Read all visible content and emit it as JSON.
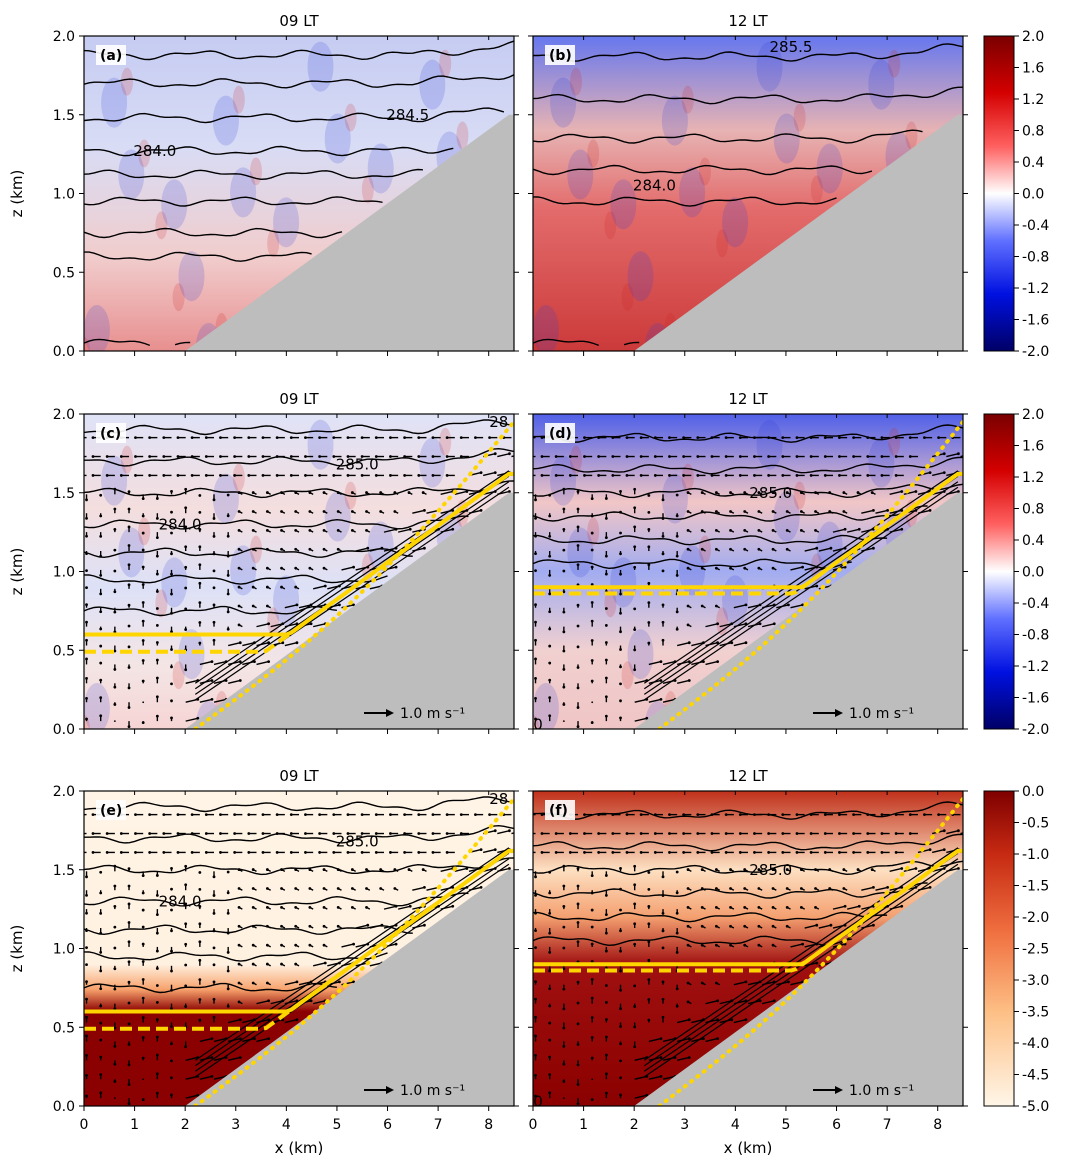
{
  "chart_data": [
    {
      "type": "heatmap",
      "panel_label": "(a)",
      "title": "09 LT",
      "ylabel": "z (km)",
      "xlabel": "",
      "xlim": [
        0,
        8.5
      ],
      "ylim": [
        0,
        2
      ],
      "terrain": {
        "x_start": 2.0,
        "x_end": 8.4,
        "z_top": 1.5
      },
      "contours": [
        0.05,
        0.6,
        0.75,
        0.95,
        1.12,
        1.27,
        1.48,
        1.7,
        1.88
      ],
      "contour_labels": [
        {
          "text": "284.0",
          "x": 1.4,
          "y": 1.27
        },
        {
          "text": "284.5",
          "x": 6.4,
          "y": 1.5
        }
      ],
      "colorbar": {
        "id": "rwb",
        "ticks": [
          "2.0",
          "1.6",
          "1.2",
          "0.8",
          "0.4",
          "0.0",
          "-0.4",
          "-0.8",
          "-1.2",
          "-1.6",
          "-2.0"
        ]
      }
    },
    {
      "type": "heatmap",
      "panel_label": "(b)",
      "title": "12 LT",
      "ylabel": "",
      "xlabel": "",
      "xlim": [
        0,
        8.5
      ],
      "ylim": [
        0,
        2
      ],
      "terrain": {
        "x_start": 2.0,
        "x_end": 8.4,
        "z_top": 1.5
      },
      "contours": [
        0.05,
        0.95,
        1.15,
        1.35,
        1.6,
        1.87
      ],
      "contour_labels": [
        {
          "text": "284.0",
          "x": 2.4,
          "y": 1.05
        },
        {
          "text": "285.5",
          "x": 5.1,
          "y": 1.93
        }
      ],
      "colorbar": {
        "id": "rwb",
        "ticks": [
          "2.0",
          "1.6",
          "1.2",
          "0.8",
          "0.4",
          "0.0",
          "-0.4",
          "-0.8",
          "-1.2",
          "-1.6",
          "-2.0"
        ]
      }
    },
    {
      "type": "heatmap",
      "panel_label": "(c)",
      "title": "09 LT",
      "ylabel": "z (km)",
      "xlabel": "",
      "xlim": [
        0,
        8.5
      ],
      "ylim": [
        0,
        2
      ],
      "terrain": {
        "x_start": 2.0,
        "x_end": 8.4,
        "z_top": 1.5
      },
      "contours": [
        0.75,
        0.95,
        1.12,
        1.3,
        1.5,
        1.7,
        1.9
      ],
      "contour_labels": [
        {
          "text": "284.0",
          "x": 1.9,
          "y": 1.3
        },
        {
          "text": "285.0",
          "x": 5.4,
          "y": 1.68
        },
        {
          "text": "28",
          "x": 8.2,
          "y": 1.95
        }
      ],
      "yellow_solid": {
        "flat_z": 0.6,
        "x_bend": 2.6
      },
      "yellow_dashed": {
        "flat_z": 0.49,
        "x_bend": 2.4
      },
      "yellow_dotted_start_x": 2.2,
      "vector_scale_label": "1.0 m s⁻¹",
      "colorbar": {
        "id": "rwb",
        "ticks": [
          "2.0",
          "1.6",
          "1.2",
          "0.8",
          "0.4",
          "0.0",
          "-0.4",
          "-0.8",
          "-1.2",
          "-1.6",
          "-2.0"
        ]
      }
    },
    {
      "type": "heatmap",
      "panel_label": "(d)",
      "title": "12 LT",
      "ylabel": "",
      "xlabel": "",
      "xlim": [
        0,
        8.5
      ],
      "ylim": [
        0,
        2
      ],
      "terrain": {
        "x_start": 2.0,
        "x_end": 8.4,
        "z_top": 1.5
      },
      "contours": [
        1.05,
        1.2,
        1.35,
        1.5,
        1.65,
        1.85
      ],
      "contour_labels": [
        {
          "text": "285.0",
          "x": 4.7,
          "y": 1.5
        },
        {
          "text": "0",
          "x": 0.1,
          "y": 0.03
        }
      ],
      "yellow_solid": {
        "flat_z": 0.9,
        "x_bend": 2.7
      },
      "yellow_dashed": {
        "flat_z": 0.86,
        "x_bend": 2.9
      },
      "yellow_dotted_start_x": 2.5,
      "vector_scale_label": "1.0 m s⁻¹",
      "colorbar": {
        "id": "rwb",
        "ticks": [
          "2.0",
          "1.6",
          "1.2",
          "0.8",
          "0.4",
          "0.0",
          "-0.4",
          "-0.8",
          "-1.2",
          "-1.6",
          "-2.0"
        ]
      }
    },
    {
      "type": "heatmap",
      "panel_label": "(e)",
      "title": "09 LT",
      "ylabel": "z (km)",
      "xlabel": "x (km)",
      "xlim": [
        0,
        8.5
      ],
      "ylim": [
        0,
        2
      ],
      "terrain": {
        "x_start": 2.0,
        "x_end": 8.4,
        "z_top": 1.5
      },
      "contours": [
        0.75,
        0.95,
        1.12,
        1.3,
        1.5,
        1.7,
        1.9
      ],
      "contour_labels": [
        {
          "text": "284.0",
          "x": 1.9,
          "y": 1.3
        },
        {
          "text": "285.0",
          "x": 5.4,
          "y": 1.68
        },
        {
          "text": "28",
          "x": 8.2,
          "y": 1.95
        }
      ],
      "yellow_solid": {
        "flat_z": 0.6,
        "x_bend": 2.6
      },
      "yellow_dashed": {
        "flat_z": 0.49,
        "x_bend": 2.4
      },
      "yellow_dotted_start_x": 2.2,
      "vector_scale_label": "1.0 m s⁻¹",
      "colorbar": {
        "id": "orange",
        "ticks": [
          "0.0",
          "-0.5",
          "-1.0",
          "-1.5",
          "-2.0",
          "-2.5",
          "-3.0",
          "-3.5",
          "-4.0",
          "-4.5",
          "-5.0"
        ]
      }
    },
    {
      "type": "heatmap",
      "panel_label": "(f)",
      "title": "12 LT",
      "ylabel": "",
      "xlabel": "x (km)",
      "xlim": [
        0,
        8.5
      ],
      "ylim": [
        0,
        2
      ],
      "terrain": {
        "x_start": 2.0,
        "x_end": 8.4,
        "z_top": 1.5
      },
      "contours": [
        1.05,
        1.2,
        1.35,
        1.5,
        1.65,
        1.85
      ],
      "contour_labels": [
        {
          "text": "285.0",
          "x": 4.7,
          "y": 1.5
        },
        {
          "text": "0",
          "x": 0.1,
          "y": 0.03
        }
      ],
      "yellow_solid": {
        "flat_z": 0.9,
        "x_bend": 2.7
      },
      "yellow_dashed": {
        "flat_z": 0.86,
        "x_bend": 2.9
      },
      "yellow_dotted_start_x": 2.5,
      "vector_scale_label": "1.0 m s⁻¹",
      "colorbar": {
        "id": "orange",
        "ticks": [
          "0.0",
          "-0.5",
          "-1.0",
          "-1.5",
          "-2.0",
          "-2.5",
          "-3.0",
          "-3.5",
          "-4.0",
          "-4.5",
          "-5.0"
        ]
      }
    }
  ],
  "axes": {
    "x_ticks": [
      "0",
      "1",
      "2",
      "3",
      "4",
      "5",
      "6",
      "7",
      "8"
    ],
    "y_ticks": [
      "0.0",
      "0.5",
      "1.0",
      "1.5",
      "2.0"
    ]
  },
  "colors": {
    "terrain": "#bdbdbd",
    "yellow": "#ffd500",
    "red": "#cc1f1f",
    "blue": "#2c3fd6",
    "dark_red": "#8b0000"
  }
}
